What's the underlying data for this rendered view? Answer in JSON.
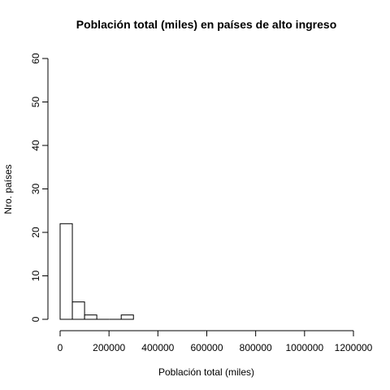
{
  "chart_data": {
    "type": "bar",
    "subtype": "histogram",
    "title": "Población total (miles) en países de alto ingreso",
    "xlabel": "Población total (miles)",
    "ylabel": "Nro. países",
    "xlim": [
      0,
      1200000
    ],
    "ylim": [
      0,
      60
    ],
    "x_ticks": [
      0,
      200000,
      400000,
      600000,
      800000,
      1000000,
      1200000
    ],
    "y_ticks": [
      0,
      10,
      20,
      30,
      40,
      50,
      60
    ],
    "bin_width": 50000,
    "bins": [
      {
        "start": 0,
        "end": 50000,
        "count": 22
      },
      {
        "start": 50000,
        "end": 100000,
        "count": 4
      },
      {
        "start": 100000,
        "end": 150000,
        "count": 1
      },
      {
        "start": 150000,
        "end": 200000,
        "count": 0
      },
      {
        "start": 200000,
        "end": 250000,
        "count": 0
      },
      {
        "start": 250000,
        "end": 300000,
        "count": 1
      }
    ],
    "bar_fill": "#ffffff",
    "bar_stroke": "#000000",
    "grid": false,
    "legend": "none"
  }
}
